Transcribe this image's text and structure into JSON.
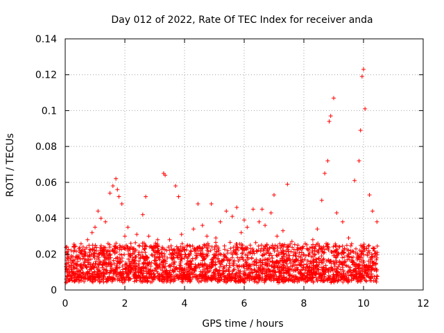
{
  "chart_data": {
    "type": "scatter",
    "title": "Day 012 of 2022, Rate Of TEC Index for receiver anda",
    "xlabel": "GPS time / hours",
    "ylabel": "ROTI / TECUs",
    "xlim": [
      0,
      12
    ],
    "ylim": [
      0,
      0.14
    ],
    "xticks": [
      0,
      2,
      4,
      6,
      8,
      10,
      12
    ],
    "yticks": [
      0,
      0.02,
      0.04,
      0.06,
      0.08,
      0.1,
      0.12,
      0.14
    ],
    "xtick_labels": [
      "0",
      "2",
      "4",
      "6",
      "8",
      "10",
      "12"
    ],
    "ytick_labels": [
      "0",
      "0.02",
      "0.04",
      "0.06",
      "0.08",
      "0.1",
      "0.12",
      "0.14"
    ],
    "grid": true,
    "marker": "+",
    "marker_color": "#ff0000",
    "series": [
      {
        "name": "ROTI",
        "x": [
          0.05,
          0.1,
          0.2,
          0.3,
          0.45,
          0.6,
          0.75,
          0.9,
          1.0,
          1.1,
          1.2,
          1.35,
          1.5,
          1.6,
          1.7,
          1.75,
          1.8,
          1.9,
          2.0,
          2.1,
          2.2,
          2.4,
          2.6,
          2.7,
          2.8,
          2.95,
          3.1,
          3.3,
          3.35,
          3.5,
          3.7,
          3.8,
          3.9,
          4.1,
          4.3,
          4.45,
          4.6,
          4.75,
          4.9,
          5.05,
          5.2,
          5.4,
          5.6,
          5.75,
          5.9,
          6.0,
          6.1,
          6.3,
          6.5,
          6.6,
          6.7,
          6.9,
          7.0,
          7.1,
          7.3,
          7.45,
          7.6,
          7.8,
          7.9,
          8.1,
          8.3,
          8.45,
          8.6,
          8.7,
          8.8,
          8.85,
          8.9,
          9.0,
          9.1,
          9.3,
          9.5,
          9.7,
          9.85,
          9.9,
          9.95,
          10.0,
          10.05,
          10.2,
          10.3,
          10.45,
          0.15,
          0.5,
          1.3,
          2.3,
          3.0,
          4.2,
          5.3,
          6.2,
          6.8,
          7.7,
          8.2,
          9.2,
          9.8,
          10.4,
          0.35,
          1.55,
          4.5,
          7.2,
          8.75,
          9.92
        ],
        "y": [
          0.012,
          0.018,
          0.022,
          0.015,
          0.019,
          0.024,
          0.028,
          0.032,
          0.035,
          0.044,
          0.04,
          0.038,
          0.054,
          0.058,
          0.062,
          0.056,
          0.052,
          0.048,
          0.03,
          0.035,
          0.026,
          0.031,
          0.042,
          0.052,
          0.03,
          0.022,
          0.028,
          0.065,
          0.064,
          0.028,
          0.058,
          0.052,
          0.031,
          0.025,
          0.034,
          0.048,
          0.036,
          0.03,
          0.048,
          0.029,
          0.038,
          0.044,
          0.041,
          0.046,
          0.032,
          0.039,
          0.035,
          0.045,
          0.038,
          0.045,
          0.036,
          0.043,
          0.053,
          0.03,
          0.033,
          0.059,
          0.027,
          0.025,
          0.023,
          0.023,
          0.028,
          0.034,
          0.05,
          0.065,
          0.072,
          0.094,
          0.097,
          0.107,
          0.043,
          0.038,
          0.029,
          0.061,
          0.072,
          0.089,
          0.119,
          0.123,
          0.101,
          0.053,
          0.044,
          0.038,
          0.01,
          0.014,
          0.02,
          0.016,
          0.011,
          0.013,
          0.017,
          0.012,
          0.015,
          0.014,
          0.013,
          0.016,
          0.018,
          0.012,
          0.009,
          0.011,
          0.008,
          0.01,
          0.012,
          0.02
        ]
      }
    ]
  }
}
